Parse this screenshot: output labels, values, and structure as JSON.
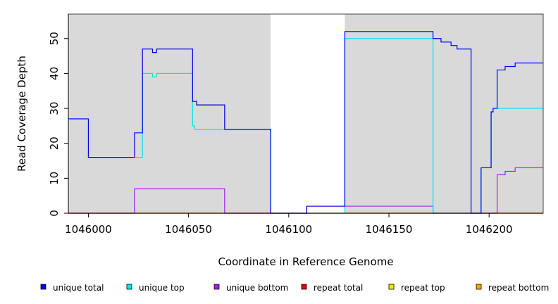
{
  "chart_data": {
    "type": "line",
    "title": "",
    "xlabel": "Coordinate in Reference Genome",
    "ylabel": "Read Coverage Depth",
    "xlim": [
      1045990,
      1046227
    ],
    "ylim": [
      0,
      57
    ],
    "x_ticks": [
      1046000,
      1046050,
      1046100,
      1046150,
      1046200
    ],
    "y_ticks": [
      0,
      10,
      20,
      30,
      40,
      50
    ],
    "background_regions": [
      {
        "x_start": 1045990,
        "x_end": 1046091,
        "color": "#d9d9d9"
      },
      {
        "x_start": 1046128,
        "x_end": 1046227,
        "color": "#d9d9d9"
      }
    ],
    "legend_position": "bottom",
    "series": [
      {
        "name": "unique total",
        "color": "#0000ee",
        "step": "post",
        "x": [
          1045990,
          1046000,
          1046023,
          1046027,
          1046032,
          1046034,
          1046052,
          1046054,
          1046068,
          1046091,
          1046109,
          1046128,
          1046172,
          1046176,
          1046181,
          1046184,
          1046191,
          1046196,
          1046201,
          1046202,
          1046204,
          1046208,
          1046213,
          1046227
        ],
        "values": [
          27,
          16,
          23,
          47,
          46,
          47,
          32,
          31,
          24,
          0,
          2,
          52,
          50,
          49,
          48,
          47,
          0,
          13,
          29,
          30,
          41,
          42,
          43,
          43
        ]
      },
      {
        "name": "unique top",
        "color": "#00e5ee",
        "step": "post",
        "x": [
          1045990,
          1046000,
          1046023,
          1046027,
          1046032,
          1046034,
          1046052,
          1046053,
          1046054,
          1046068,
          1046091,
          1046109,
          1046128,
          1046172,
          1046191,
          1046196,
          1046201,
          1046202,
          1046204,
          1046227
        ],
        "values": [
          27,
          16,
          16,
          40,
          39,
          40,
          25,
          24,
          24,
          24,
          0,
          0,
          50,
          0,
          0,
          13,
          29,
          30,
          30,
          30
        ]
      },
      {
        "name": "unique bottom",
        "color": "#a020f0",
        "step": "post",
        "x": [
          1045990,
          1046023,
          1046068,
          1046091,
          1046109,
          1046128,
          1046172,
          1046204,
          1046208,
          1046213,
          1046227
        ],
        "values": [
          0,
          7,
          0,
          0,
          2,
          2,
          0,
          11,
          12,
          13,
          13
        ]
      },
      {
        "name": "repeat total",
        "color": "#ee0000",
        "step": "post",
        "x": [
          1045990,
          1046227
        ],
        "values": [
          0,
          0
        ]
      },
      {
        "name": "repeat top",
        "color": "#eeee00",
        "step": "post",
        "x": [
          1045990,
          1046227
        ],
        "values": [
          0,
          0
        ]
      },
      {
        "name": "repeat bottom",
        "color": "#ffa500",
        "step": "post",
        "x": [
          1045990,
          1046227
        ],
        "values": [
          0,
          0
        ]
      }
    ]
  }
}
